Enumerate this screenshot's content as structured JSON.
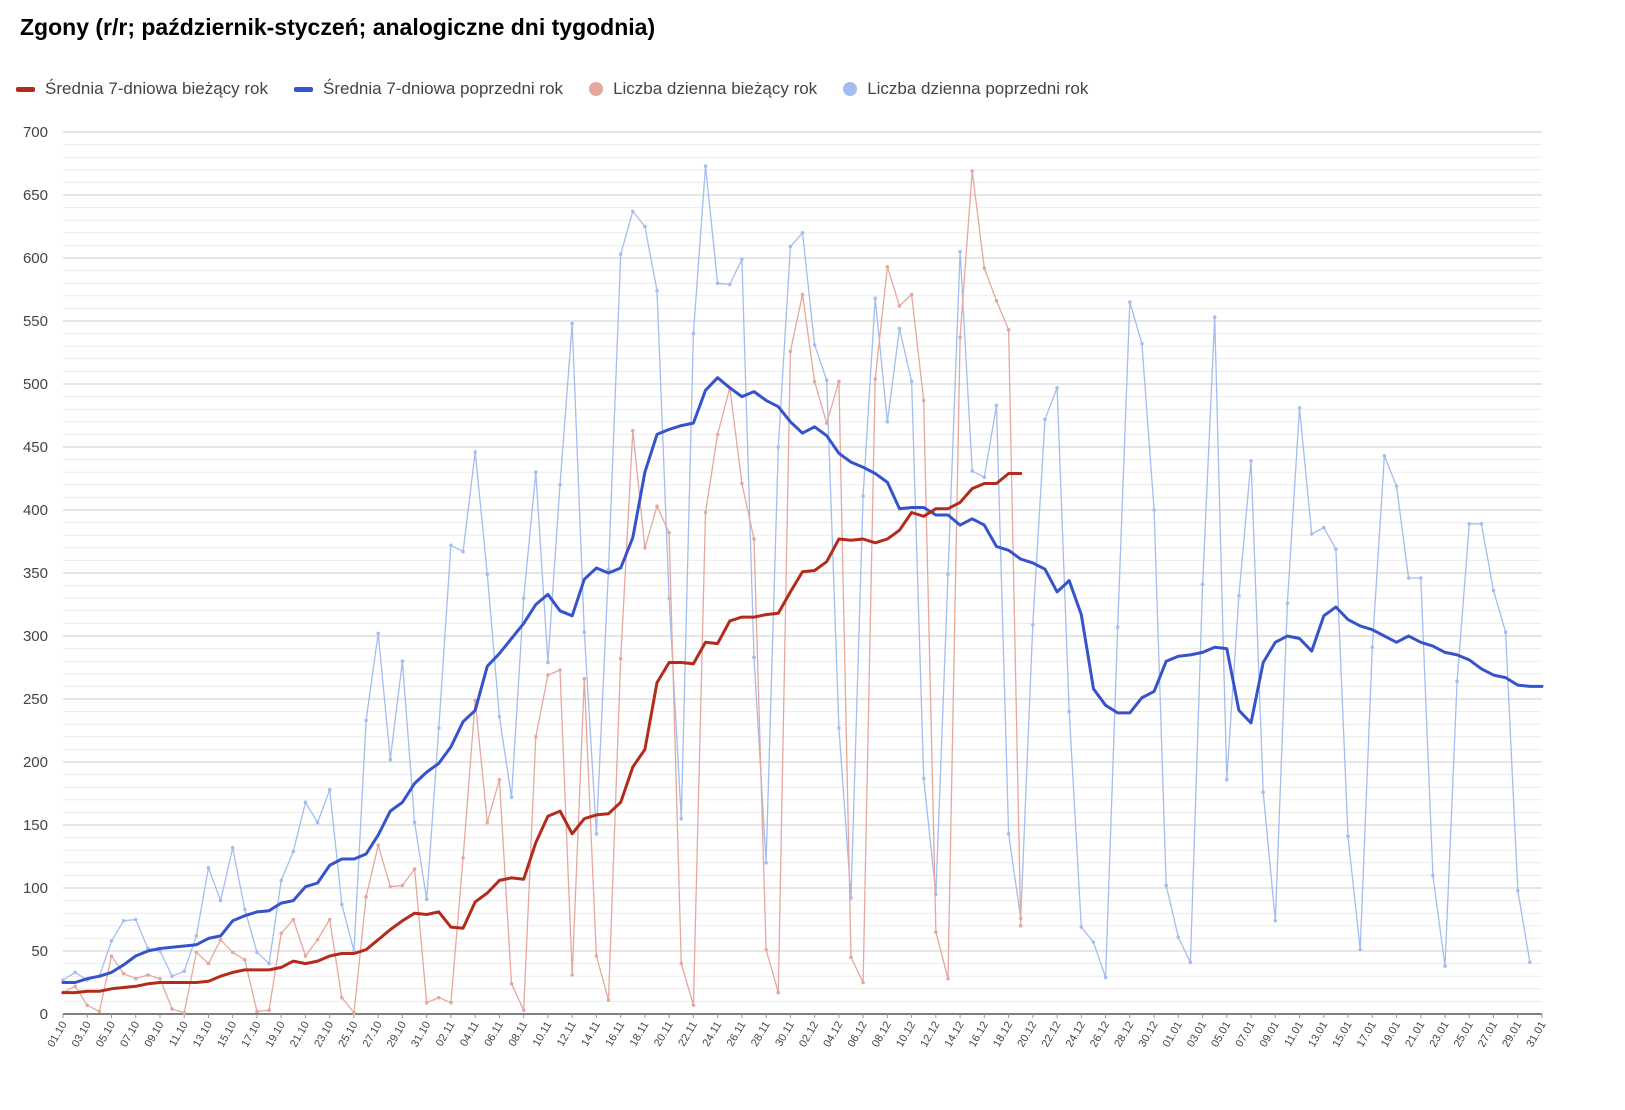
{
  "chart_data": {
    "type": "line",
    "title": "Zgony (r/r; październik-styczeń; analogiczne dni tygodnia)",
    "xlabel": "",
    "ylabel": "",
    "ylim": [
      0,
      700
    ],
    "y_ticks": [
      0,
      50,
      100,
      150,
      200,
      250,
      300,
      350,
      400,
      450,
      500,
      550,
      600,
      650,
      700
    ],
    "grid": true,
    "legend_position": "top-left",
    "x_tick_labels": [
      "01.10",
      "03.10",
      "05.10",
      "07.10",
      "09.10",
      "11.10",
      "13.10",
      "15.10",
      "17.10",
      "19.10",
      "21.10",
      "23.10",
      "25.10",
      "27.10",
      "29.10",
      "31.10",
      "02.11",
      "04.11",
      "06.11",
      "08.11",
      "10.11",
      "12.11",
      "14.11",
      "16.11",
      "18.11",
      "20.11",
      "22.11",
      "24.11",
      "26.11",
      "28.11",
      "30.11",
      "02.12",
      "04.12",
      "06.12",
      "08.12",
      "10.12",
      "12.12",
      "14.12",
      "16.12",
      "18.12",
      "20.12",
      "22.12",
      "24.12",
      "26.12",
      "28.12",
      "30.12",
      "01.01",
      "03.01",
      "05.01",
      "07.01",
      "09.01",
      "11.01",
      "13.01",
      "15.01",
      "17.01",
      "19.01",
      "21.01",
      "23.01",
      "25.01",
      "27.01",
      "29.01",
      "31.01"
    ],
    "series": [
      {
        "name": "Liczba dzienna poprzedni rok",
        "color": "#a4bdf0",
        "kind": "daily",
        "start_index": 0,
        "values": [
          27,
          33,
          27,
          30,
          58,
          74,
          75,
          52,
          50,
          30,
          34,
          62,
          116,
          90,
          132,
          83,
          49,
          40,
          106,
          129,
          168,
          152,
          178,
          87,
          50,
          233,
          302,
          202,
          280,
          152,
          91,
          227,
          372,
          367,
          446,
          349,
          236,
          172,
          330,
          430,
          279,
          420,
          548,
          303,
          143,
          353,
          603,
          637,
          625,
          574,
          330,
          155,
          540,
          673,
          580,
          579,
          599,
          283,
          120,
          450,
          609,
          620,
          531,
          503,
          227,
          92,
          411,
          568,
          470,
          544,
          502,
          187,
          95,
          349,
          605,
          431,
          426,
          483,
          143,
          76,
          309,
          472,
          497,
          240,
          69,
          57,
          29,
          307,
          565,
          532,
          400,
          102,
          61,
          41,
          341,
          553,
          186,
          332,
          439,
          176,
          74,
          326,
          481,
          381,
          386,
          369,
          141,
          51,
          291,
          443,
          419,
          346,
          346,
          110,
          38,
          264,
          389,
          389,
          336,
          303,
          98,
          41
        ]
      },
      {
        "name": "Liczba dzienna bieżący rok",
        "color": "#e6a89e",
        "kind": "daily",
        "start_index": 0,
        "values": [
          17,
          22,
          7,
          2,
          46,
          32,
          28,
          31,
          28,
          4,
          1,
          49,
          40,
          59,
          49,
          43,
          2,
          3,
          64,
          75,
          46,
          59,
          75,
          13,
          1,
          93,
          134,
          101,
          102,
          115,
          9,
          13,
          9,
          124,
          249,
          152,
          186,
          24,
          3,
          220,
          269,
          273,
          31,
          266,
          46,
          11,
          282,
          463,
          370,
          403,
          382,
          40,
          7,
          398,
          460,
          497,
          421,
          377,
          51,
          17,
          526,
          571,
          502,
          469,
          502,
          45,
          25,
          504,
          593,
          562,
          571,
          487,
          65,
          28,
          537,
          669,
          592,
          566,
          543,
          70
        ]
      },
      {
        "name": "Średnia 7-dniowa poprzedni rok",
        "color": "#3653cc",
        "kind": "avg",
        "start_index": 0,
        "values": [
          25,
          25,
          28,
          30,
          33,
          39,
          46,
          50,
          52,
          53,
          54,
          55,
          60,
          62,
          74,
          78,
          81,
          82,
          88,
          90,
          101,
          104,
          118,
          123,
          123,
          127,
          142,
          161,
          168,
          183,
          192,
          199,
          212,
          232,
          241,
          276,
          286,
          298,
          310,
          325,
          333,
          320,
          316,
          345,
          354,
          350,
          354,
          378,
          430,
          460,
          464,
          467,
          469,
          495,
          505,
          497,
          490,
          494,
          487,
          482,
          470,
          461,
          466,
          459,
          445,
          438,
          434,
          429,
          422,
          401,
          402,
          402,
          396,
          396,
          388,
          393,
          388,
          371,
          368,
          361,
          358,
          353,
          335,
          344,
          317,
          258,
          245,
          239,
          239,
          251,
          256,
          280,
          284,
          285,
          287,
          291,
          290,
          241,
          231,
          279,
          295,
          300,
          298,
          288,
          316,
          323,
          313,
          308,
          305,
          300,
          295,
          300,
          295,
          292,
          287,
          285,
          281,
          274,
          269,
          267,
          261,
          260,
          260
        ]
      },
      {
        "name": "Średnia 7-dniowa bieżący rok",
        "color": "#b32c1b",
        "kind": "avg",
        "start_index": 0,
        "values": [
          17,
          17,
          18,
          18,
          20,
          21,
          22,
          24,
          25,
          25,
          25,
          25,
          26,
          30,
          33,
          35,
          35,
          35,
          37,
          42,
          40,
          42,
          46,
          48,
          48,
          51,
          59,
          67,
          74,
          80,
          79,
          81,
          69,
          68,
          89,
          96,
          106,
          108,
          107,
          136,
          157,
          161,
          143,
          155,
          158,
          159,
          168,
          196,
          210,
          263,
          279,
          279,
          278,
          295,
          294,
          312,
          315,
          315,
          317,
          318,
          335,
          351,
          352,
          359,
          377,
          376,
          377,
          374,
          377,
          384,
          398,
          395,
          401,
          401,
          406,
          417,
          421,
          421,
          429,
          429
        ]
      }
    ]
  },
  "legend": [
    {
      "label": "Średnia 7-dniowa bieżący rok",
      "color": "#b32c1b",
      "marker": "line"
    },
    {
      "label": "Średnia 7-dniowa poprzedni rok",
      "color": "#3653cc",
      "marker": "line"
    },
    {
      "label": "Liczba dzienna bieżący rok",
      "color": "#e6a89e",
      "marker": "dot"
    },
    {
      "label": "Liczba dzienna poprzedni rok",
      "color": "#a4bdf0",
      "marker": "dot"
    }
  ]
}
